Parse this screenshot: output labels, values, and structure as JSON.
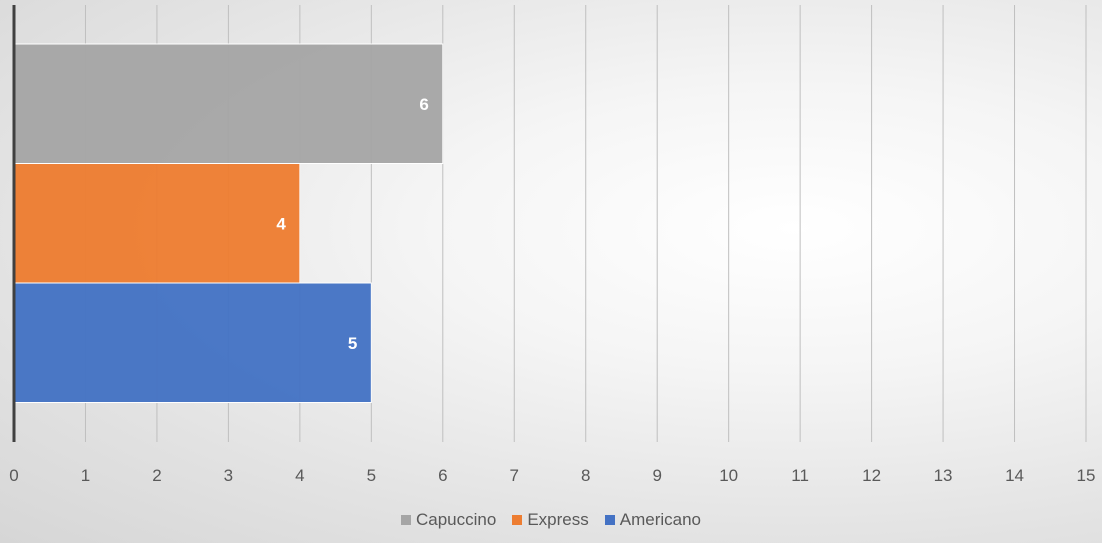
{
  "chart_data": {
    "type": "bar",
    "orientation": "horizontal",
    "xlim": [
      0,
      15
    ],
    "x_ticks": [
      0,
      1,
      2,
      3,
      4,
      5,
      6,
      7,
      8,
      9,
      10,
      11,
      12,
      13,
      14,
      15
    ],
    "grid": "vertical",
    "legend_position": "bottom",
    "series": [
      {
        "name": "Capuccino",
        "value": 6,
        "color": "#a5a5a5"
      },
      {
        "name": "Express",
        "value": 4,
        "color": "#ed7d31"
      },
      {
        "name": "Americano",
        "value": 5,
        "color": "#4472c4"
      }
    ]
  },
  "legend": {
    "items": [
      {
        "label": "Capuccino",
        "color": "#a5a5a5"
      },
      {
        "label": "Express",
        "color": "#ed7d31"
      },
      {
        "label": "Americano",
        "color": "#4472c4"
      }
    ]
  }
}
